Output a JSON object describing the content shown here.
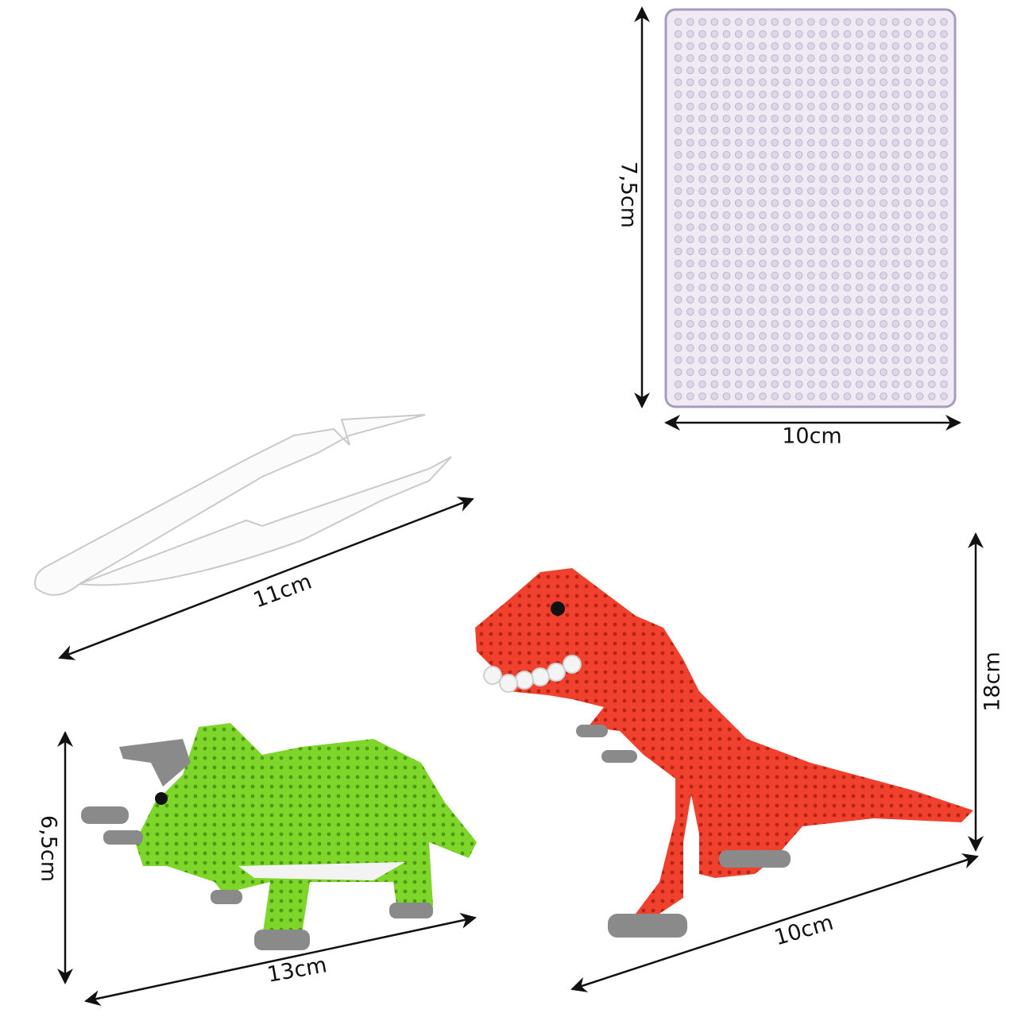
{
  "pegboard": {
    "height": "7,5cm",
    "width": "10cm"
  },
  "tweezers": {
    "length": "11cm"
  },
  "t_rex": {
    "height": "18cm",
    "length": "10cm"
  },
  "triceratops": {
    "height": "6,5cm",
    "length": "13cm"
  }
}
